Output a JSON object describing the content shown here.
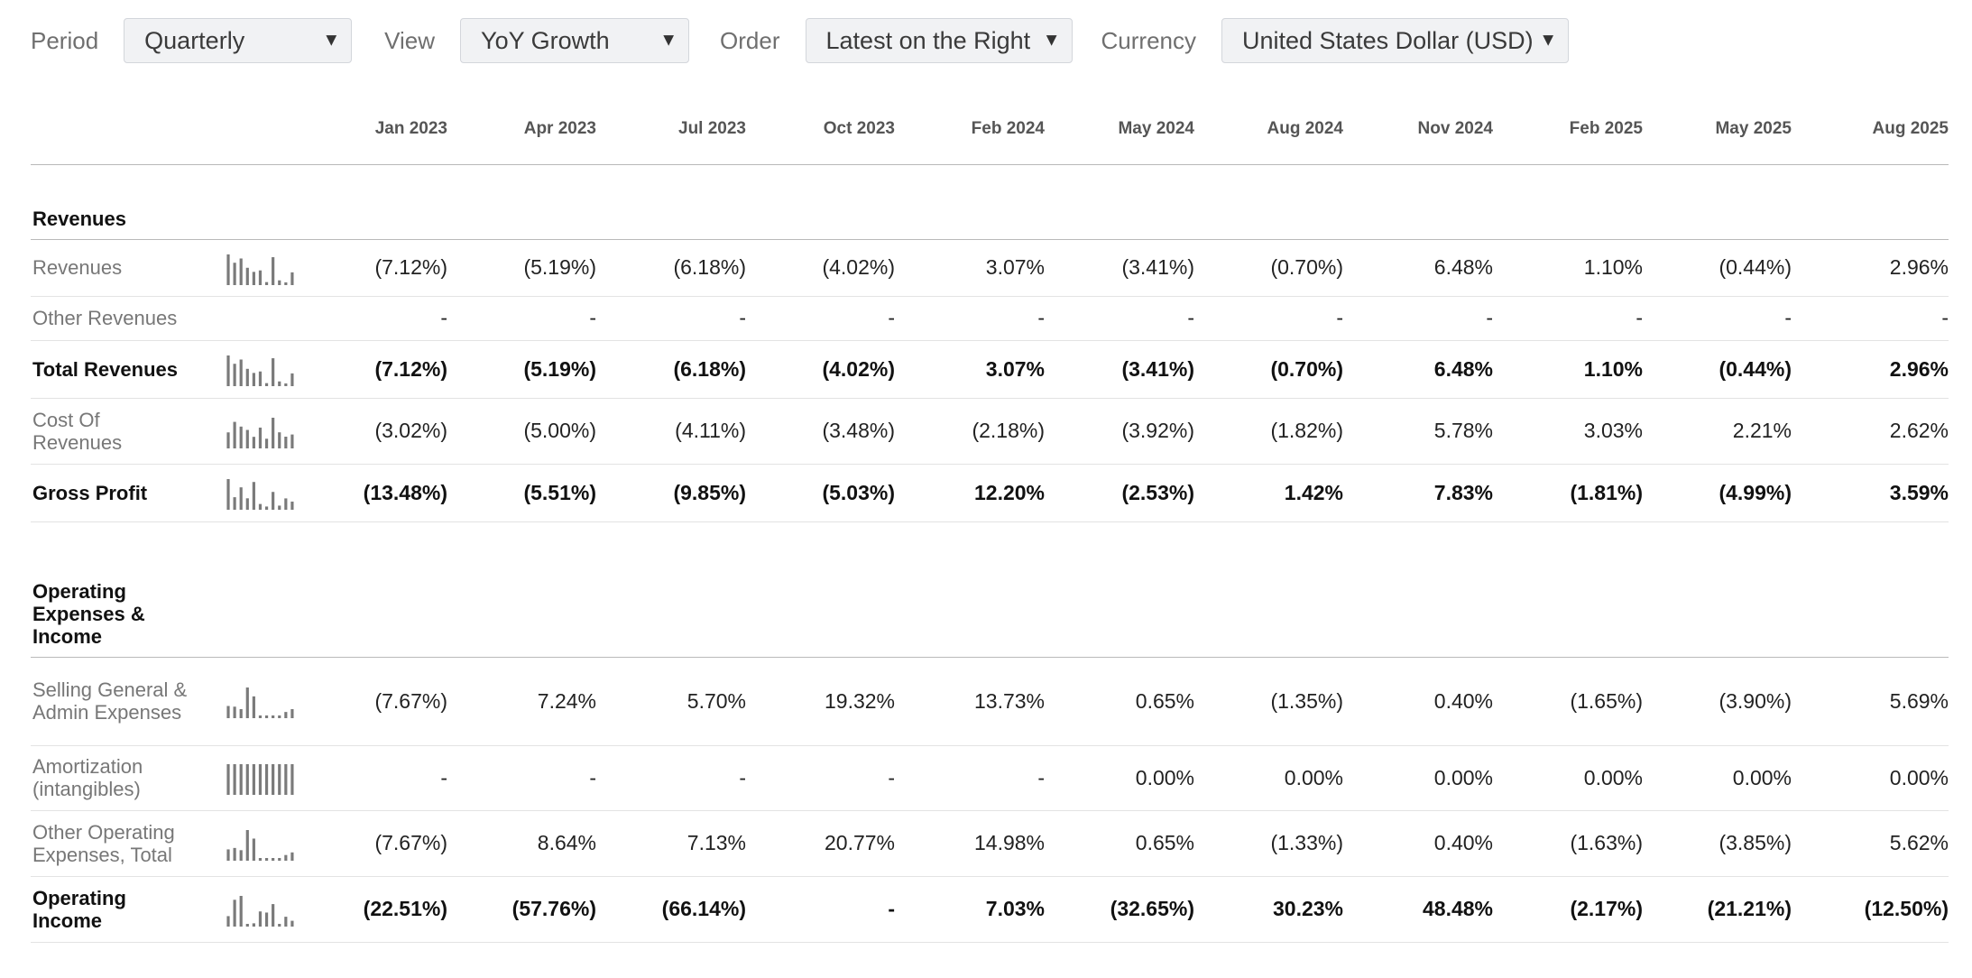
{
  "controls": {
    "period": {
      "label": "Period",
      "value": "Quarterly"
    },
    "view": {
      "label": "View",
      "value": "YoY Growth"
    },
    "order": {
      "label": "Order",
      "value": "Latest on the Right"
    },
    "currency": {
      "label": "Currency",
      "value": "United States Dollar (USD)"
    },
    "caret_icon": "▼"
  },
  "columns": [
    "Jan 2023",
    "Apr 2023",
    "Jul 2023",
    "Oct 2023",
    "Feb 2024",
    "May 2024",
    "Aug 2024",
    "Nov 2024",
    "Feb 2025",
    "May 2025",
    "Aug 2025"
  ],
  "sections": [
    {
      "title": "Revenues",
      "rows": [
        {
          "label": "Revenues",
          "bold": false,
          "spark": [
            7.12,
            5.19,
            6.18,
            4.02,
            3.07,
            3.41,
            0.7,
            6.48,
            1.1,
            0.44,
            2.96
          ],
          "values": [
            "(7.12%)",
            "(5.19%)",
            "(6.18%)",
            "(4.02%)",
            "3.07%",
            "(3.41%)",
            "(0.70%)",
            "6.48%",
            "1.10%",
            "(0.44%)",
            "2.96%"
          ]
        },
        {
          "label": "Other Revenues",
          "bold": false,
          "spark": null,
          "values": [
            "-",
            "-",
            "-",
            "-",
            "-",
            "-",
            "-",
            "-",
            "-",
            "-",
            "-"
          ]
        },
        {
          "label": "Total Revenues",
          "bold": true,
          "spark": [
            7.12,
            5.19,
            6.18,
            4.02,
            3.07,
            3.41,
            0.7,
            6.48,
            1.1,
            0.44,
            2.96
          ],
          "values": [
            "(7.12%)",
            "(5.19%)",
            "(6.18%)",
            "(4.02%)",
            "3.07%",
            "(3.41%)",
            "(0.70%)",
            "6.48%",
            "1.10%",
            "(0.44%)",
            "2.96%"
          ]
        },
        {
          "label": "Cost Of Revenues",
          "bold": false,
          "spark": [
            3.02,
            5.0,
            4.11,
            3.48,
            2.18,
            3.92,
            1.82,
            5.78,
            3.03,
            2.21,
            2.62
          ],
          "values": [
            "(3.02%)",
            "(5.00%)",
            "(4.11%)",
            "(3.48%)",
            "(2.18%)",
            "(3.92%)",
            "(1.82%)",
            "5.78%",
            "3.03%",
            "2.21%",
            "2.62%"
          ]
        },
        {
          "label": "Gross Profit",
          "bold": true,
          "spark": [
            13.48,
            5.51,
            9.85,
            5.03,
            12.2,
            2.53,
            1.42,
            7.83,
            1.81,
            4.99,
            3.59
          ],
          "values": [
            "(13.48%)",
            "(5.51%)",
            "(9.85%)",
            "(5.03%)",
            "12.20%",
            "(2.53%)",
            "1.42%",
            "7.83%",
            "(1.81%)",
            "(4.99%)",
            "3.59%"
          ]
        }
      ]
    },
    {
      "title": "Operating Expenses & Income",
      "rows": [
        {
          "label": "Selling General & Admin Expenses",
          "bold": false,
          "spark": [
            7.67,
            7.24,
            5.7,
            19.32,
            13.73,
            0.65,
            1.35,
            0.4,
            1.65,
            3.9,
            5.69
          ],
          "values": [
            "(7.67%)",
            "7.24%",
            "5.70%",
            "19.32%",
            "13.73%",
            "0.65%",
            "(1.35%)",
            "0.40%",
            "(1.65%)",
            "(3.90%)",
            "5.69%"
          ]
        },
        {
          "label": "Amortization (intangibles)",
          "bold": false,
          "spark": [
            1,
            1,
            1,
            1,
            1,
            1,
            1,
            1,
            1,
            1,
            1
          ],
          "values": [
            "-",
            "-",
            "-",
            "-",
            "-",
            "0.00%",
            "0.00%",
            "0.00%",
            "0.00%",
            "0.00%",
            "0.00%"
          ]
        },
        {
          "label": "Other Operating Expenses, Total",
          "bold": false,
          "spark": [
            7.67,
            8.64,
            7.13,
            20.77,
            14.98,
            0.65,
            1.33,
            0.4,
            1.63,
            3.85,
            5.62
          ],
          "values": [
            "(7.67%)",
            "8.64%",
            "7.13%",
            "20.77%",
            "14.98%",
            "0.65%",
            "(1.33%)",
            "0.40%",
            "(1.63%)",
            "(3.85%)",
            "5.62%"
          ]
        },
        {
          "label": "Operating Income",
          "bold": true,
          "spark": [
            22.51,
            -57.76,
            -66.14,
            0,
            7.03,
            -32.65,
            30.23,
            48.48,
            -2.17,
            -21.21,
            -12.5
          ],
          "values": [
            "(22.51%)",
            "(57.76%)",
            "(66.14%)",
            "-",
            "7.03%",
            "(32.65%)",
            "30.23%",
            "48.48%",
            "(2.17%)",
            "(21.21%)",
            "(12.50%)"
          ]
        }
      ]
    }
  ]
}
